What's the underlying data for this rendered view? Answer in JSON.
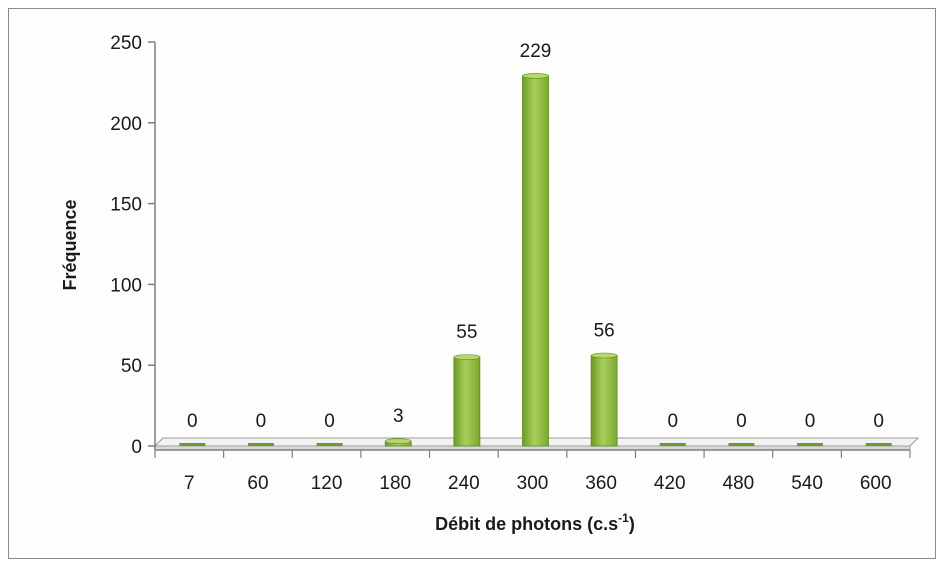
{
  "chart_data": {
    "type": "bar",
    "title": "",
    "xlabel": "Débit de photons (c.s",
    "xlabel_superscript": "-1",
    "xlabel_suffix": ")",
    "ylabel": "Fréquence",
    "categories": [
      "7",
      "60",
      "120",
      "180",
      "240",
      "300",
      "360",
      "420",
      "480",
      "540",
      "600"
    ],
    "values": [
      0,
      0,
      0,
      3,
      55,
      229,
      56,
      0,
      0,
      0,
      0
    ],
    "data_labels": [
      "0",
      "0",
      "0",
      "3",
      "55",
      "229",
      "56",
      "0",
      "0",
      "0",
      "0"
    ],
    "ylim": [
      0,
      250
    ],
    "yticks": [
      "0",
      "50",
      "100",
      "150",
      "200",
      "250"
    ],
    "grid": false,
    "legend": "none",
    "colors": {
      "bar": "#8dba3a",
      "bar_dark": "#6e9a28",
      "bar_light": "#a9cf5a",
      "floor": "#f2f2f2",
      "axis": "#7f7f7f"
    }
  }
}
